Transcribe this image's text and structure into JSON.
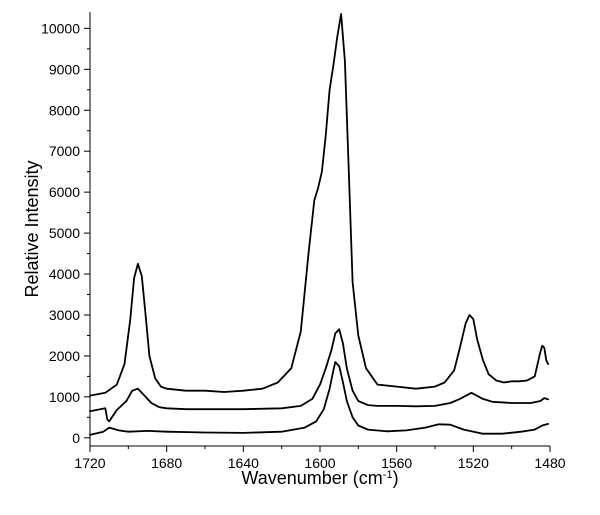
{
  "chart_data": {
    "type": "line",
    "title": "",
    "xlabel": "Wavenumber (cm",
    "xlabel_sup": "-1",
    "xlabel_end": ")",
    "ylabel": "Relative Intensity",
    "xlim": [
      1720,
      1480
    ],
    "ylim": [
      -200,
      10400
    ],
    "x_reversed": true,
    "grid": false,
    "x_ticks": [
      1720,
      1680,
      1640,
      1600,
      1560,
      1520,
      1480
    ],
    "x_tick_labels": [
      "1720",
      "1680",
      "1640",
      "1600",
      "1560",
      "1520",
      "1480"
    ],
    "y_ticks": [
      0,
      1000,
      2000,
      3000,
      4000,
      5000,
      6000,
      7000,
      8000,
      9000,
      10000
    ],
    "y_tick_labels": [
      "0",
      "1000",
      "2000",
      "3000",
      "4000",
      "5000",
      "6000",
      "7000",
      "8000",
      "9000",
      "10000"
    ],
    "line_color": "#000000",
    "series": [
      {
        "x": [
          1720,
          1712,
          1706,
          1702,
          1699,
          1697,
          1695,
          1693,
          1691,
          1689,
          1686,
          1683,
          1680,
          1670,
          1660,
          1650,
          1640,
          1630,
          1622,
          1615,
          1610,
          1606,
          1603,
          1601,
          1599,
          1597,
          1595,
          1593,
          1591,
          1589,
          1587,
          1585,
          1583,
          1580,
          1576,
          1570,
          1560,
          1550,
          1540,
          1535,
          1530,
          1527,
          1524,
          1522,
          1520,
          1518,
          1515,
          1512,
          1508,
          1504,
          1500,
          1496,
          1492,
          1488,
          1485,
          1484,
          1483,
          1482,
          1481
        ],
        "y": [
          1030,
          1100,
          1300,
          1800,
          2900,
          3900,
          4250,
          3950,
          3000,
          2000,
          1450,
          1250,
          1200,
          1150,
          1150,
          1120,
          1150,
          1200,
          1350,
          1700,
          2600,
          4500,
          5800,
          6100,
          6500,
          7400,
          8500,
          9100,
          9800,
          10350,
          9200,
          6500,
          3800,
          2500,
          1700,
          1300,
          1250,
          1200,
          1250,
          1350,
          1650,
          2200,
          2800,
          3000,
          2900,
          2400,
          1900,
          1550,
          1400,
          1350,
          1380,
          1380,
          1400,
          1500,
          2100,
          2250,
          2200,
          1900,
          1800
        ]
      },
      {
        "x": [
          1720,
          1712,
          1711,
          1710,
          1706,
          1701,
          1698,
          1695,
          1692,
          1688,
          1684,
          1680,
          1670,
          1660,
          1640,
          1620,
          1610,
          1604,
          1600,
          1597,
          1594,
          1592,
          1590,
          1588,
          1586,
          1583,
          1580,
          1575,
          1570,
          1560,
          1550,
          1540,
          1532,
          1527,
          1523,
          1521,
          1519,
          1515,
          1510,
          1500,
          1490,
          1485,
          1483,
          1481
        ],
        "y": [
          650,
          720,
          450,
          400,
          680,
          900,
          1150,
          1200,
          1050,
          850,
          750,
          720,
          700,
          700,
          700,
          720,
          780,
          950,
          1300,
          1700,
          2150,
          2550,
          2650,
          2300,
          1700,
          1150,
          900,
          800,
          780,
          780,
          770,
          780,
          850,
          950,
          1050,
          1100,
          1050,
          950,
          880,
          850,
          850,
          900,
          970,
          940
        ]
      },
      {
        "x": [
          1720,
          1713,
          1710,
          1705,
          1700,
          1690,
          1680,
          1660,
          1640,
          1620,
          1608,
          1602,
          1598,
          1595,
          1593,
          1592,
          1590,
          1588,
          1586,
          1583,
          1580,
          1575,
          1565,
          1555,
          1545,
          1538,
          1532,
          1525,
          1515,
          1505,
          1495,
          1488,
          1484,
          1481
        ],
        "y": [
          70,
          150,
          250,
          180,
          150,
          170,
          150,
          130,
          120,
          150,
          250,
          400,
          700,
          1200,
          1650,
          1850,
          1750,
          1350,
          900,
          500,
          300,
          200,
          160,
          180,
          250,
          330,
          320,
          200,
          100,
          100,
          150,
          200,
          300,
          340
        ]
      }
    ]
  }
}
